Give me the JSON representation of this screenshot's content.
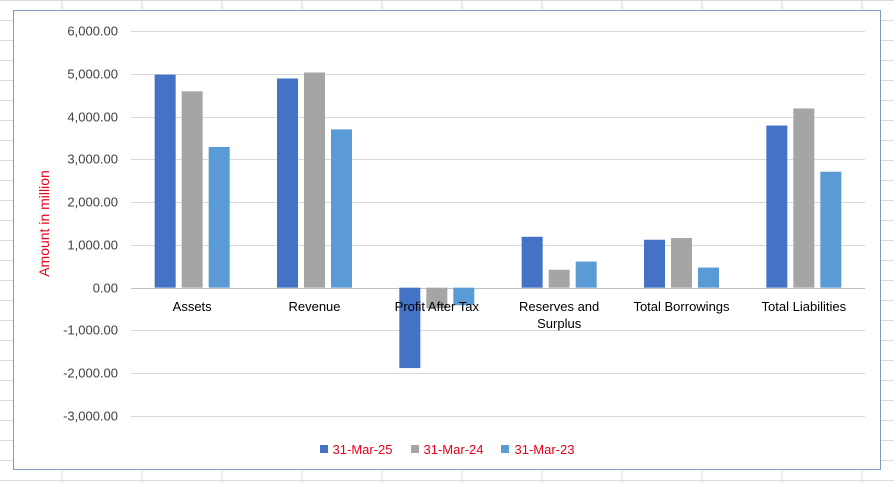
{
  "chart_data": {
    "type": "bar",
    "title": "",
    "ylabel": "Amount in million",
    "xlabel": "",
    "ylim": [
      -3000,
      6000
    ],
    "yticks": [
      6000,
      5000,
      4000,
      3000,
      2000,
      1000,
      0,
      -1000,
      -2000,
      -3000
    ],
    "ytick_labels": [
      "6,000.00",
      "5,000.00",
      "4,000.00",
      "3,000.00",
      "2,000.00",
      "1,000.00",
      "0.00",
      "-1,000.00",
      "-2,000.00",
      "-3,000.00"
    ],
    "grid": true,
    "legend_position": "bottom",
    "categories": [
      [
        "Assets"
      ],
      [
        "Revenue"
      ],
      [
        "Profit After Tax"
      ],
      [
        "Reserves and",
        "Surplus"
      ],
      [
        "Total Borrowings"
      ],
      [
        "Total Liabilities"
      ]
    ],
    "series": [
      {
        "name": "31-Mar-25",
        "color": "#4472c4",
        "values": [
          4980,
          4890,
          -1880,
          1190,
          1120,
          3790
        ]
      },
      {
        "name": "31-Mar-24",
        "color": "#a5a5a5",
        "values": [
          4590,
          5030,
          -480,
          420,
          1160,
          4190
        ]
      },
      {
        "name": "31-Mar-23",
        "color": "#5b9bd5",
        "values": [
          3290,
          3700,
          -410,
          610,
          470,
          2710
        ]
      }
    ]
  }
}
